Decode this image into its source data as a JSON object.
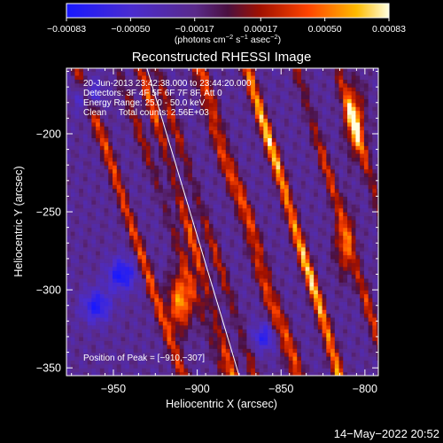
{
  "chart_data": {
    "type": "heatmap",
    "title": "Reconstructed RHESSI Image",
    "xlabel": "Heliocentric X (arcsec)",
    "ylabel": "Heliocentric Y (arcsec)",
    "xlim": [
      -978,
      -792
    ],
    "ylim": [
      -355,
      -158
    ],
    "x_ticks": [
      -950,
      -900,
      -850,
      -800
    ],
    "x_tick_labels": [
      "−950",
      "−900",
      "−850",
      "−800"
    ],
    "y_ticks": [
      -200,
      -250,
      -300,
      -350
    ],
    "y_tick_labels": [
      "−200",
      "−250",
      "−300",
      "−350"
    ],
    "colorbar": {
      "range": [
        -0.00083,
        0.00083
      ],
      "ticks": [
        -0.00083,
        -0.0005,
        -0.00017,
        0.00017,
        0.0005,
        0.00083
      ],
      "tick_labels": [
        "−0.00083",
        "−0.00050",
        "−0.00017",
        "0.00017",
        "0.00050",
        "0.00083"
      ],
      "unit_main": "(photons cm",
      "unit_sup1": "−2",
      "unit_mid1": " s",
      "unit_sup2": "−1",
      "unit_mid2": " asec",
      "unit_sup3": "−2",
      "unit_end": ")"
    },
    "annotations": [
      "20-Jun-2013 23:42:38.000 to 23:44:20.000",
      "Detectors: 3F 4F 5F 6F 7F 8F, Att 0",
      "Energy Range: 25.0 - 50.0 keV",
      "Clean     Total counts: 2.56E+03"
    ],
    "peak_label": "Position of Peak = [−910,−307]",
    "peak": [
      -910,
      -307
    ],
    "limb_line": [
      [
        -930,
        -158
      ],
      [
        -875,
        -355
      ]
    ],
    "footer": "14−May−2022 20:52",
    "colors": {
      "axis": "#ffffff",
      "background": "#000000"
    },
    "ridges": [
      {
        "x0": -967,
        "y0": -175,
        "slope": -0.33,
        "amp": 0.0004
      },
      {
        "x0": -952,
        "y0": -215,
        "slope": -0.3,
        "amp": 0.00048
      },
      {
        "x0": -934,
        "y0": -200,
        "slope": -0.32,
        "amp": 0.00042
      },
      {
        "x0": -915,
        "y0": -190,
        "slope": -0.3,
        "amp": 0.0005
      },
      {
        "x0": -903,
        "y0": -268,
        "slope": -0.28,
        "amp": 0.0007
      },
      {
        "x0": -885,
        "y0": -215,
        "slope": -0.3,
        "amp": 0.00052
      },
      {
        "x0": -870,
        "y0": -250,
        "slope": -0.3,
        "amp": 0.0006
      },
      {
        "x0": -852,
        "y0": -220,
        "slope": -0.28,
        "amp": 0.00062
      },
      {
        "x0": -838,
        "y0": -275,
        "slope": -0.28,
        "amp": 0.00065
      },
      {
        "x0": -822,
        "y0": -225,
        "slope": -0.28,
        "amp": 0.00058
      },
      {
        "x0": -806,
        "y0": -195,
        "slope": -0.28,
        "amp": 0.00072
      }
    ],
    "blobs": [
      {
        "x": -910,
        "y": -307,
        "sx": 7,
        "sy": 18,
        "amp": 0.00083
      },
      {
        "x": -806,
        "y": -190,
        "sx": 6,
        "sy": 22,
        "amp": 0.0006
      },
      {
        "x": -812,
        "y": -270,
        "sx": 6,
        "sy": 20,
        "amp": 0.00055
      },
      {
        "x": -945,
        "y": -290,
        "sx": 8,
        "sy": 10,
        "amp": -0.0006
      },
      {
        "x": -960,
        "y": -310,
        "sx": 8,
        "sy": 10,
        "amp": -0.00055
      },
      {
        "x": -965,
        "y": -175,
        "sx": 7,
        "sy": 10,
        "amp": -0.0005
      },
      {
        "x": -860,
        "y": -330,
        "sx": 7,
        "sy": 8,
        "amp": -0.00045
      }
    ]
  }
}
